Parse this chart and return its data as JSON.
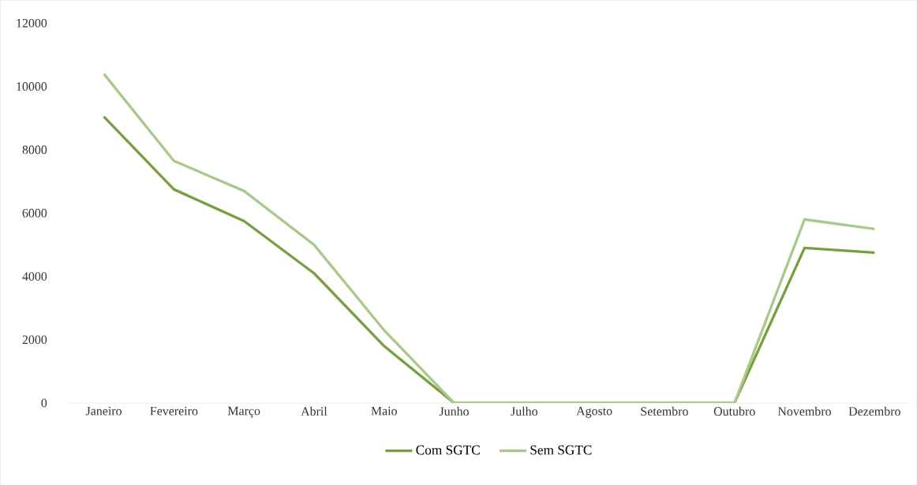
{
  "chart_data": {
    "type": "line",
    "categories": [
      "Janeiro",
      "Fevereiro",
      "Março",
      "Abril",
      "Maio",
      "Junho",
      "Julho",
      "Agosto",
      "Setembro",
      "Outubro",
      "Novembro",
      "Dezembro"
    ],
    "series": [
      {
        "name": "Com SGTC",
        "color": "#76a040",
        "values": [
          9050,
          6750,
          5750,
          4100,
          1800,
          0,
          0,
          0,
          0,
          0,
          4900,
          4750
        ]
      },
      {
        "name": "Sem SGTC",
        "color": "#a9c98a",
        "values": [
          10400,
          7650,
          6700,
          5000,
          2300,
          0,
          0,
          0,
          0,
          0,
          5800,
          5500
        ]
      }
    ],
    "ylim": [
      0,
      12000
    ],
    "yticks": [
      0,
      2000,
      4000,
      6000,
      8000,
      10000,
      12000
    ],
    "grid": false,
    "legend": "bottom",
    "marker": "none",
    "line_style": "solid"
  }
}
